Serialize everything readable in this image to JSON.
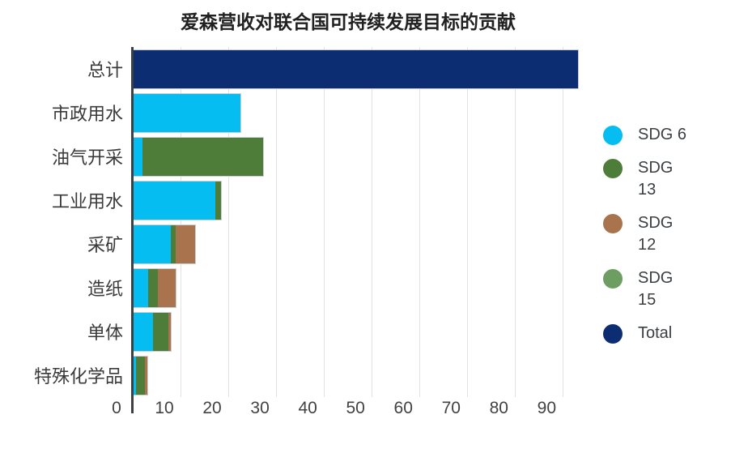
{
  "page": {
    "background": "#ffffff"
  },
  "chart_data": {
    "type": "bar",
    "orientation": "horizontal",
    "stacked": true,
    "title": "爱森营收对联合国可持续发展目标的贡献",
    "categories": [
      "总计",
      "市政用水",
      "油气开采",
      "工业用水",
      "采矿",
      "造纸",
      "单体",
      "特殊化学品"
    ],
    "series": [
      {
        "name": "SDG 6",
        "color": "#06bdf2",
        "values": [
          0,
          22.5,
          2,
          17.3,
          8,
          3.3,
          4.3,
          0.6
        ]
      },
      {
        "name": "SDG 13",
        "color": "#4e7d3a",
        "values": [
          0,
          0,
          25.2,
          1.1,
          1,
          2,
          3.2,
          1.9
        ]
      },
      {
        "name": "SDG 12",
        "color": "#a9734d",
        "values": [
          0,
          0,
          0,
          0,
          4.1,
          3.7,
          0.5,
          0.5
        ]
      },
      {
        "name": "SDG 15",
        "color": "#6d9d61",
        "values": [
          0,
          0,
          0,
          0,
          0,
          0,
          0,
          0
        ]
      },
      {
        "name": "Total",
        "color": "#0d2d72",
        "values": [
          93.2,
          0,
          0,
          0,
          0,
          0,
          0,
          0
        ]
      }
    ],
    "x_ticks": [
      0,
      10,
      20,
      30,
      40,
      50,
      60,
      70,
      80,
      90
    ],
    "xlim": [
      0,
      93.5
    ],
    "grid": "vertical",
    "gridline_color": "#e2e2e2",
    "legend_position": "right"
  },
  "legend": {
    "items": [
      {
        "series": "SDG 6",
        "lines": [
          "SDG 6"
        ],
        "color": "#06bdf2"
      },
      {
        "series": "SDG 13",
        "lines": [
          "SDG",
          "13"
        ],
        "color": "#4e7d3a"
      },
      {
        "series": "SDG 12",
        "lines": [
          "SDG",
          "12"
        ],
        "color": "#a9734d"
      },
      {
        "series": "SDG 15",
        "lines": [
          "SDG",
          "15"
        ],
        "color": "#6d9d61"
      },
      {
        "series": "Total",
        "lines": [
          "Total"
        ],
        "color": "#0d2d72"
      }
    ]
  }
}
